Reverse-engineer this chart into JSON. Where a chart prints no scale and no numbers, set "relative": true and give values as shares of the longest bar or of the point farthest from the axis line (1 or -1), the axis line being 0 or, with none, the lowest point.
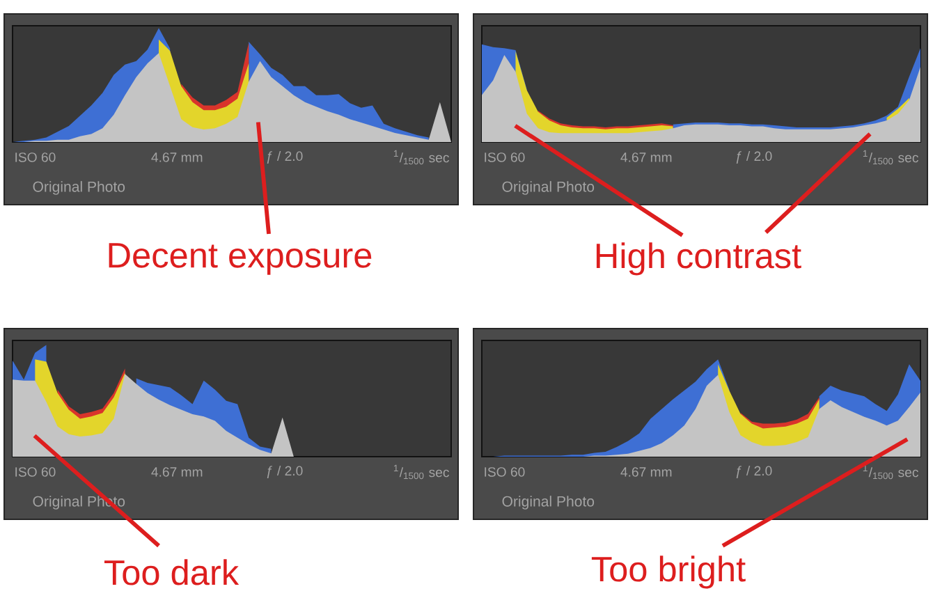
{
  "chart_data": [
    {
      "type": "area",
      "title": "Decent exposure",
      "annotations": [
        "ISO 60",
        "4.67 mm",
        "ƒ / 2.0",
        "$^{1}$/$_{1500}$ sec",
        "Original Photo"
      ],
      "relative": true,
      "categories": [
        null,
        null,
        null,
        null,
        null,
        null,
        null,
        null,
        null,
        null,
        null,
        null,
        null,
        null,
        null,
        null,
        null,
        null,
        null,
        null,
        null,
        null,
        null,
        null,
        null,
        null,
        null,
        null,
        null,
        null,
        null,
        null,
        null,
        null,
        null,
        null,
        null,
        null,
        null,
        null
      ],
      "series": [
        {
          "color": "#3e6fd4",
          "values": [
            0,
            0.01,
            0.02,
            0.04,
            0.09,
            0.14,
            0.23,
            0.32,
            0.43,
            0.59,
            0.68,
            0.71,
            0.81,
            1.0,
            0.82,
            null,
            null,
            null,
            null,
            null,
            null,
            0.88,
            0.77,
            0.65,
            0.59,
            0.49,
            0.49,
            0.41,
            0.41,
            0.42,
            0.34,
            0.3,
            0.32,
            0.16,
            0.12,
            0.09,
            0.06,
            0.04,
            null,
            null
          ]
        },
        {
          "color": "#d9342b",
          "values": [
            null,
            null,
            null,
            null,
            null,
            null,
            null,
            null,
            null,
            null,
            null,
            null,
            null,
            null,
            null,
            0.51,
            0.39,
            0.32,
            0.32,
            0.37,
            0.44,
            0.87,
            null,
            null,
            null,
            null,
            null,
            null,
            null,
            null,
            null,
            null,
            null,
            null,
            null,
            null,
            null,
            null,
            null,
            null
          ]
        },
        {
          "color": "#e3d52b",
          "values": [
            null,
            null,
            null,
            null,
            null,
            null,
            null,
            null,
            null,
            null,
            null,
            null,
            null,
            0.9,
            0.8,
            0.49,
            0.35,
            0.28,
            0.28,
            0.31,
            0.38,
            0.69,
            null,
            null,
            null,
            null,
            null,
            null,
            null,
            null,
            null,
            null,
            null,
            null,
            null,
            null,
            null,
            null,
            null,
            null
          ]
        },
        {
          "color": "#c4c4c4",
          "values": [
            0,
            0,
            0.01,
            0.01,
            0.02,
            0.02,
            0.05,
            0.07,
            0.12,
            0.24,
            0.41,
            0.57,
            0.69,
            0.78,
            0.49,
            0.2,
            0.13,
            0.11,
            0.12,
            0.16,
            0.22,
            0.53,
            0.71,
            0.57,
            0.49,
            0.41,
            0.35,
            0.31,
            0.27,
            0.24,
            0.2,
            0.17,
            0.14,
            0.11,
            0.08,
            0.06,
            0.04,
            0.02,
            0.35,
            0
          ]
        }
      ]
    },
    {
      "type": "area",
      "title": "High contrast",
      "annotations": [
        "ISO 60",
        "4.67 mm",
        "ƒ / 2.0",
        "$^{1}$/$_{1500}$ sec",
        "Original Photo"
      ],
      "relative": true,
      "categories": [
        null,
        null,
        null,
        null,
        null,
        null,
        null,
        null,
        null,
        null,
        null,
        null,
        null,
        null,
        null,
        null,
        null,
        null,
        null,
        null,
        null,
        null,
        null,
        null,
        null,
        null,
        null,
        null,
        null,
        null,
        null,
        null,
        null,
        null,
        null,
        null,
        null,
        null,
        null,
        null
      ],
      "series": [
        {
          "color": "#3e6fd4",
          "values": [
            1.0,
            0.97,
            0.96,
            0.94,
            0.54,
            null,
            null,
            null,
            null,
            null,
            null,
            null,
            null,
            null,
            null,
            null,
            null,
            0.18,
            0.19,
            0.2,
            0.2,
            0.2,
            0.19,
            0.19,
            0.18,
            0.18,
            0.17,
            0.16,
            0.15,
            0.15,
            0.15,
            0.15,
            0.16,
            0.17,
            0.19,
            0.22,
            0.27,
            0.36,
            0.67,
            0.96
          ]
        },
        {
          "color": "#d9342b",
          "values": [
            null,
            null,
            null,
            null,
            null,
            0.32,
            0.24,
            0.19,
            0.17,
            0.16,
            0.16,
            0.15,
            0.16,
            0.16,
            0.17,
            0.18,
            0.19,
            0.17,
            null,
            null,
            null,
            null,
            null,
            null,
            null,
            null,
            null,
            null,
            null,
            null,
            null,
            null,
            null,
            null,
            null,
            null,
            null,
            null,
            null,
            null
          ]
        },
        {
          "color": "#e3d52b",
          "values": [
            null,
            null,
            null,
            0.93,
            0.53,
            0.31,
            0.22,
            0.17,
            0.15,
            0.14,
            0.14,
            0.13,
            0.14,
            0.14,
            0.15,
            0.16,
            0.17,
            0.16,
            null,
            null,
            null,
            null,
            null,
            null,
            null,
            null,
            null,
            null,
            null,
            null,
            null,
            null,
            null,
            null,
            null,
            null,
            0.25,
            0.34,
            0.45,
            null
          ]
        },
        {
          "color": "#c4c4c4",
          "values": [
            0.48,
            0.63,
            0.89,
            0.72,
            0.29,
            0.14,
            0.1,
            0.09,
            0.09,
            0.09,
            0.09,
            0.09,
            0.09,
            0.09,
            0.1,
            0.11,
            0.12,
            0.14,
            0.17,
            0.18,
            0.18,
            0.18,
            0.17,
            0.17,
            0.16,
            0.16,
            0.14,
            0.13,
            0.13,
            0.13,
            0.13,
            0.13,
            0.14,
            0.15,
            0.17,
            0.19,
            0.22,
            0.29,
            0.43,
            0.77
          ]
        }
      ]
    },
    {
      "type": "area",
      "title": "Too dark",
      "annotations": [
        "ISO 60",
        "4.67 mm",
        "ƒ / 2.0",
        "$^{1}$/$_{1500}$ sec",
        "Original Photo"
      ],
      "relative": true,
      "categories": [
        null,
        null,
        null,
        null,
        null,
        null,
        null,
        null,
        null,
        null,
        null,
        null,
        null,
        null,
        null,
        null,
        null,
        null,
        null,
        null,
        null,
        null,
        null,
        null,
        null,
        null,
        null,
        null,
        null,
        null,
        null,
        null,
        null,
        null,
        null,
        null,
        null,
        null,
        null,
        null
      ],
      "series": [
        {
          "color": "#3e6fd4",
          "values": [
            0.86,
            0.69,
            0.93,
            1.0,
            null,
            null,
            null,
            null,
            null,
            null,
            null,
            0.7,
            0.66,
            0.64,
            0.62,
            0.55,
            0.47,
            0.68,
            0.6,
            0.5,
            0.47,
            0.17,
            0.09,
            0.07,
            null,
            null,
            null,
            null,
            null,
            null,
            null,
            null,
            null,
            null,
            null,
            null,
            null,
            null,
            null,
            null
          ]
        },
        {
          "color": "#d9342b",
          "values": [
            null,
            null,
            null,
            null,
            0.6,
            0.45,
            0.38,
            0.4,
            0.43,
            0.57,
            0.79,
            null,
            null,
            null,
            null,
            null,
            null,
            null,
            null,
            null,
            null,
            null,
            null,
            null,
            null,
            null,
            null,
            null,
            null,
            null,
            null,
            null,
            null,
            null,
            null,
            null,
            null,
            null,
            null,
            null
          ]
        },
        {
          "color": "#e3d52b",
          "values": [
            null,
            null,
            0.87,
            0.85,
            0.57,
            0.42,
            0.34,
            0.36,
            0.39,
            0.53,
            0.75,
            null,
            null,
            null,
            null,
            null,
            null,
            null,
            null,
            null,
            null,
            null,
            null,
            null,
            null,
            null,
            null,
            null,
            null,
            null,
            null,
            null,
            null,
            null,
            null,
            null,
            null,
            null,
            null,
            null
          ]
        },
        {
          "color": "#c4c4c4",
          "values": [
            0.69,
            0.68,
            0.68,
            0.49,
            0.27,
            0.2,
            0.18,
            0.19,
            0.21,
            0.34,
            0.74,
            0.65,
            0.57,
            0.51,
            0.46,
            0.42,
            0.38,
            0.36,
            0.32,
            0.23,
            0.17,
            0.11,
            0.06,
            0.03,
            0.35,
            0,
            0,
            0,
            0,
            0,
            0,
            0,
            0,
            0,
            0,
            0,
            0,
            0,
            0,
            0
          ]
        }
      ]
    },
    {
      "type": "area",
      "title": "Too bright",
      "annotations": [
        "ISO 60",
        "4.67 mm",
        "ƒ / 2.0",
        "$^{1}$/$_{1500}$ sec",
        "Original Photo"
      ],
      "relative": true,
      "categories": [
        null,
        null,
        null,
        null,
        null,
        null,
        null,
        null,
        null,
        null,
        null,
        null,
        null,
        null,
        null,
        null,
        null,
        null,
        null,
        null,
        null,
        null,
        null,
        null,
        null,
        null,
        null,
        null,
        null,
        null,
        null,
        null,
        null,
        null,
        null,
        null,
        null,
        null,
        null,
        null
      ],
      "series": [
        {
          "color": "#3e6fd4",
          "values": [
            0,
            0,
            0.01,
            0.01,
            0.01,
            0.01,
            0.01,
            0.01,
            0.02,
            0.02,
            0.04,
            0.05,
            0.1,
            0.16,
            0.24,
            0.39,
            0.49,
            0.59,
            0.68,
            0.77,
            0.9,
            1.0,
            0.69,
            null,
            null,
            null,
            null,
            null,
            null,
            null,
            0.62,
            0.73,
            0.68,
            0.65,
            0.62,
            0.54,
            0.47,
            0.64,
            0.95,
            0.78
          ]
        },
        {
          "color": "#d9342b",
          "values": [
            null,
            null,
            null,
            null,
            null,
            null,
            null,
            null,
            null,
            null,
            null,
            null,
            null,
            null,
            null,
            null,
            null,
            null,
            null,
            null,
            null,
            null,
            null,
            0.45,
            0.36,
            0.34,
            0.34,
            0.35,
            0.38,
            0.44,
            0.61,
            null,
            null,
            null,
            null,
            null,
            null,
            null,
            null,
            null
          ]
        },
        {
          "color": "#e3d52b",
          "values": [
            null,
            null,
            null,
            null,
            null,
            null,
            null,
            null,
            null,
            null,
            null,
            null,
            null,
            null,
            null,
            null,
            null,
            null,
            null,
            null,
            null,
            0.95,
            0.68,
            0.44,
            0.34,
            0.29,
            0.3,
            0.31,
            0.34,
            0.39,
            0.59,
            null,
            null,
            null,
            null,
            null,
            null,
            null,
            null,
            null
          ]
        },
        {
          "color": "#c4c4c4",
          "values": [
            0,
            0,
            0,
            0,
            0,
            0,
            0,
            0,
            0,
            0,
            0.01,
            0.01,
            0.02,
            0.03,
            0.06,
            0.09,
            0.14,
            0.22,
            0.32,
            0.49,
            0.73,
            0.84,
            0.46,
            0.22,
            0.15,
            0.11,
            0.11,
            0.12,
            0.15,
            0.2,
            0.49,
            0.58,
            0.51,
            0.46,
            0.41,
            0.37,
            0.32,
            0.37,
            0.51,
            0.66
          ]
        }
      ]
    }
  ]
}
